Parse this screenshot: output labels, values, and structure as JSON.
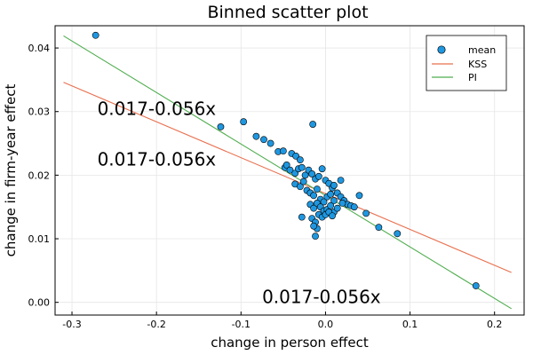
{
  "chart_data": {
    "type": "scatter",
    "title": "Binned scatter plot",
    "xlabel": "change in person effect",
    "ylabel": "change in firm-year effect",
    "xlim": [
      -0.32,
      0.235
    ],
    "ylim": [
      -0.002,
      0.0435
    ],
    "grid": true,
    "legend_position": "top-right",
    "xticks": [
      -0.3,
      -0.2,
      -0.1,
      0.0,
      0.1,
      0.2
    ],
    "xtick_labels": [
      "-0.3",
      "-0.2",
      "-0.1",
      "0.0",
      "0.1",
      "0.2"
    ],
    "yticks": [
      0.0,
      0.01,
      0.02,
      0.03,
      0.04
    ],
    "ytick_labels": [
      "0.00",
      "0.01",
      "0.02",
      "0.03",
      "0.04"
    ],
    "series": [
      {
        "name": "mean",
        "kind": "scatter",
        "color": "#1f97e0",
        "points": [
          [
            -0.272,
            0.042
          ],
          [
            -0.124,
            0.0276
          ],
          [
            -0.097,
            0.0284
          ],
          [
            -0.082,
            0.0261
          ],
          [
            -0.073,
            0.0256
          ],
          [
            -0.065,
            0.025
          ],
          [
            -0.056,
            0.0237
          ],
          [
            -0.05,
            0.0238
          ],
          [
            -0.04,
            0.0234
          ],
          [
            -0.035,
            0.023
          ],
          [
            -0.03,
            0.0224
          ],
          [
            -0.015,
            0.028
          ],
          [
            -0.048,
            0.0212
          ],
          [
            -0.046,
            0.0216
          ],
          [
            -0.042,
            0.0208
          ],
          [
            -0.036,
            0.0203
          ],
          [
            -0.032,
            0.021
          ],
          [
            -0.028,
            0.0212
          ],
          [
            -0.024,
            0.02
          ],
          [
            -0.02,
            0.0208
          ],
          [
            -0.016,
            0.0202
          ],
          [
            -0.012,
            0.0194
          ],
          [
            -0.008,
            0.0198
          ],
          [
            -0.004,
            0.021
          ],
          [
            0.0,
            0.0192
          ],
          [
            0.004,
            0.0187
          ],
          [
            0.008,
            0.018
          ],
          [
            -0.036,
            0.0186
          ],
          [
            -0.03,
            0.0182
          ],
          [
            -0.026,
            0.019
          ],
          [
            -0.022,
            0.0176
          ],
          [
            -0.018,
            0.0172
          ],
          [
            -0.014,
            0.0168
          ],
          [
            -0.01,
            0.0178
          ],
          [
            -0.006,
            0.0162
          ],
          [
            -0.002,
            0.0158
          ],
          [
            0.002,
            0.0166
          ],
          [
            0.006,
            0.017
          ],
          [
            0.01,
            0.016
          ],
          [
            0.014,
            0.0172
          ],
          [
            0.018,
            0.0166
          ],
          [
            0.022,
            0.016
          ],
          [
            0.026,
            0.0154
          ],
          [
            0.03,
            0.0152
          ],
          [
            0.034,
            0.015
          ],
          [
            0.04,
            0.0168
          ],
          [
            0.018,
            0.0192
          ],
          [
            0.01,
            0.0184
          ],
          [
            -0.018,
            0.0154
          ],
          [
            -0.014,
            0.0148
          ],
          [
            -0.01,
            0.0156
          ],
          [
            -0.006,
            0.015
          ],
          [
            -0.002,
            0.0144
          ],
          [
            0.002,
            0.0146
          ],
          [
            0.006,
            0.0152
          ],
          [
            0.01,
            0.0142
          ],
          [
            0.014,
            0.0148
          ],
          [
            0.02,
            0.0156
          ],
          [
            -0.028,
            0.0134
          ],
          [
            -0.016,
            0.0132
          ],
          [
            -0.012,
            0.0126
          ],
          [
            -0.008,
            0.0138
          ],
          [
            -0.004,
            0.0134
          ],
          [
            0.0,
            0.0138
          ],
          [
            0.004,
            0.0142
          ],
          [
            0.008,
            0.0136
          ],
          [
            -0.01,
            0.0116
          ],
          [
            -0.014,
            0.012
          ],
          [
            -0.012,
            0.0104
          ],
          [
            0.048,
            0.014
          ],
          [
            0.063,
            0.0118
          ],
          [
            0.085,
            0.0108
          ],
          [
            0.178,
            0.0026
          ]
        ]
      },
      {
        "name": "KSS",
        "kind": "line",
        "color": "#e8704f",
        "points": [
          [
            -0.31,
            0.0346
          ],
          [
            0.22,
            0.0047
          ]
        ]
      },
      {
        "name": "PI",
        "kind": "line",
        "color": "#4fad4f",
        "points": [
          [
            -0.31,
            0.0419
          ],
          [
            0.22,
            -0.001
          ]
        ]
      }
    ],
    "annotations": [
      {
        "text": "0.017-0.056x",
        "x": -0.27,
        "y": 0.0295
      },
      {
        "text": "0.017-0.056x",
        "x": -0.27,
        "y": 0.0215
      },
      {
        "text": "0.017-0.056x",
        "x": -0.075,
        "y": -0.0001
      }
    ]
  }
}
